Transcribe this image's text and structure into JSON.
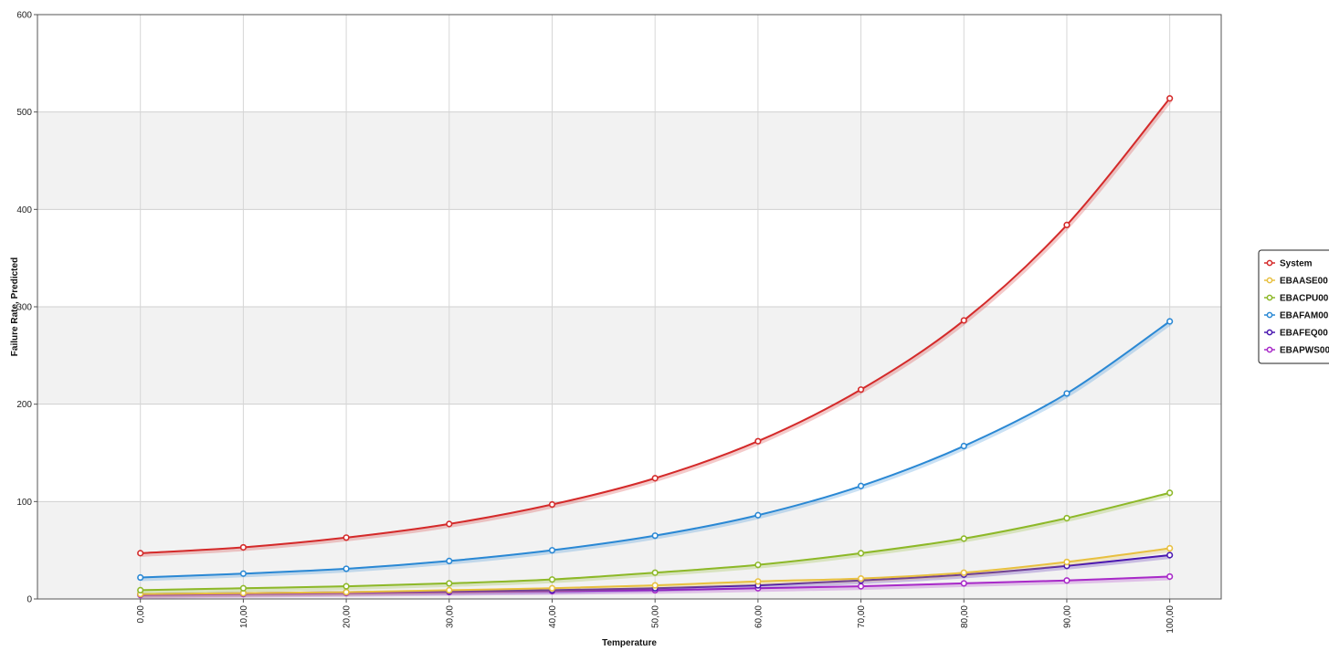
{
  "chart_data": {
    "type": "line",
    "xlabel": "Temperature",
    "ylabel": "Failure Rate, Predicted",
    "x_tick_labels": [
      "0,00",
      "10,00",
      "20,00",
      "30,00",
      "40,00",
      "50,00",
      "60,00",
      "70,00",
      "80,00",
      "90,00",
      "100,00"
    ],
    "x": [
      0,
      10,
      20,
      30,
      40,
      50,
      60,
      70,
      80,
      90,
      100
    ],
    "xlim": [
      -10,
      105
    ],
    "ylim": [
      0,
      600
    ],
    "y_ticks": [
      0,
      100,
      200,
      300,
      400,
      500,
      600
    ],
    "grid": true,
    "legend_position": "right",
    "series": [
      {
        "name": "System",
        "color": "#d42a2a",
        "values": [
          47,
          53,
          63,
          77,
          97,
          124,
          162,
          215,
          286,
          384,
          514
        ]
      },
      {
        "name": "EBAASE00",
        "color": "#e8c040",
        "values": [
          5,
          6,
          7,
          9,
          11,
          14,
          18,
          21,
          27,
          38,
          52
        ]
      },
      {
        "name": "EBACPU00",
        "color": "#8db828",
        "values": [
          9,
          11,
          13,
          16,
          20,
          27,
          35,
          47,
          62,
          83,
          109
        ]
      },
      {
        "name": "EBAFAM00",
        "color": "#2a88d4",
        "values": [
          22,
          26,
          31,
          39,
          50,
          65,
          86,
          116,
          157,
          211,
          285
        ]
      },
      {
        "name": "EBAFEQ00",
        "color": "#4a18b0",
        "values": [
          5,
          6,
          7,
          8,
          9,
          11,
          14,
          19,
          25,
          34,
          45
        ]
      },
      {
        "name": "EBAPWS00",
        "color": "#a82ac8",
        "values": [
          4,
          5,
          6,
          7,
          8,
          9,
          11,
          13,
          16,
          19,
          23
        ]
      }
    ]
  }
}
